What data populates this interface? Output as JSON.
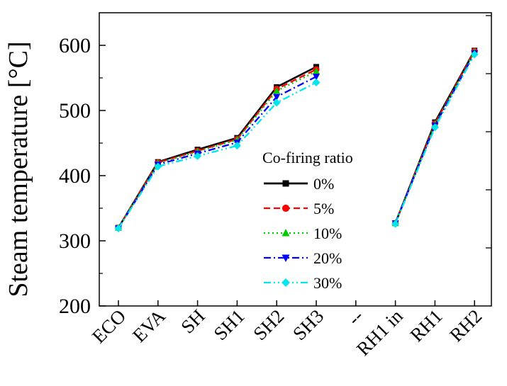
{
  "chart_data": {
    "type": "line",
    "title": "",
    "xlabel": "",
    "ylabel": "Steam temperature [°C]",
    "ylim": [
      200,
      650
    ],
    "yticks": [
      200,
      300,
      400,
      500,
      600
    ],
    "categories": [
      "ECO",
      "EVA",
      "SH",
      "SH1",
      "SH2",
      "SH3",
      "--",
      "RH1 in",
      "RH1",
      "RH2"
    ],
    "legend": {
      "title": "Co-firing ratio",
      "position": "center"
    },
    "series": [
      {
        "name": "0%",
        "color": "#000000",
        "marker": "square",
        "dash": "solid",
        "values": [
          320,
          421,
          440,
          458,
          536,
          567,
          null,
          327,
          482,
          592
        ]
      },
      {
        "name": "5%",
        "color": "#ff0000",
        "marker": "circle",
        "dash": "dash",
        "values": [
          320,
          420,
          438,
          456,
          533,
          563,
          null,
          327,
          480,
          591
        ]
      },
      {
        "name": "10%",
        "color": "#00cc00",
        "marker": "triangle-up",
        "dash": "dot",
        "values": [
          320,
          419,
          437,
          455,
          530,
          560,
          null,
          327,
          479,
          590
        ]
      },
      {
        "name": "20%",
        "color": "#0000ff",
        "marker": "triangle-down",
        "dash": "dashdot",
        "values": [
          319,
          417,
          434,
          451,
          521,
          552,
          null,
          327,
          477,
          588
        ]
      },
      {
        "name": "30%",
        "color": "#00e5ee",
        "marker": "diamond",
        "dash": "dashdotdot",
        "values": [
          319,
          414,
          430,
          446,
          512,
          543,
          null,
          326,
          474,
          586
        ]
      }
    ]
  }
}
